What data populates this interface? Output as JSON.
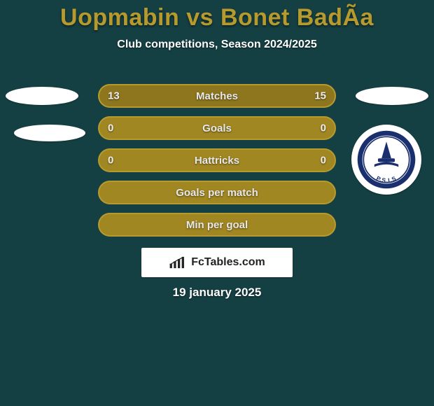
{
  "colors": {
    "background": "#154043",
    "title": "#b79a2e",
    "bar_base": "#a18722",
    "bar_border": "#b79a2e",
    "bar_fill_left": "#8e761f",
    "bar_fill_right": "#8e761f",
    "bar_text": "#e8e8e8",
    "bar_value": "#ededed",
    "ellipse": "#ffffff",
    "badge_ring": "#1a2f6e",
    "badge_inner": "#ffffff",
    "date_text": "#ffffff"
  },
  "title": {
    "text": "Uopmabin vs Bonet BadÃa",
    "fontsize": 34
  },
  "subtitle": {
    "text": "Club competitions, Season 2024/2025",
    "fontsize": 16
  },
  "bars": {
    "label_fontsize": 15,
    "value_fontsize": 15,
    "items": [
      {
        "label": "Matches",
        "left": "13",
        "right": "15",
        "left_pct": 46,
        "right_pct": 54
      },
      {
        "label": "Goals",
        "left": "0",
        "right": "0",
        "left_pct": 0,
        "right_pct": 0
      },
      {
        "label": "Hattricks",
        "left": "0",
        "right": "0",
        "left_pct": 0,
        "right_pct": 0
      },
      {
        "label": "Goals per match",
        "left": "",
        "right": "",
        "left_pct": 0,
        "right_pct": 0
      },
      {
        "label": "Min per goal",
        "left": "",
        "right": "",
        "left_pct": 0,
        "right_pct": 0
      }
    ]
  },
  "badge": {
    "text": "P.S.I.S"
  },
  "footer": {
    "brand": "FcTables.com",
    "fontsize": 16
  },
  "date": {
    "text": "19 january 2025",
    "fontsize": 17
  }
}
